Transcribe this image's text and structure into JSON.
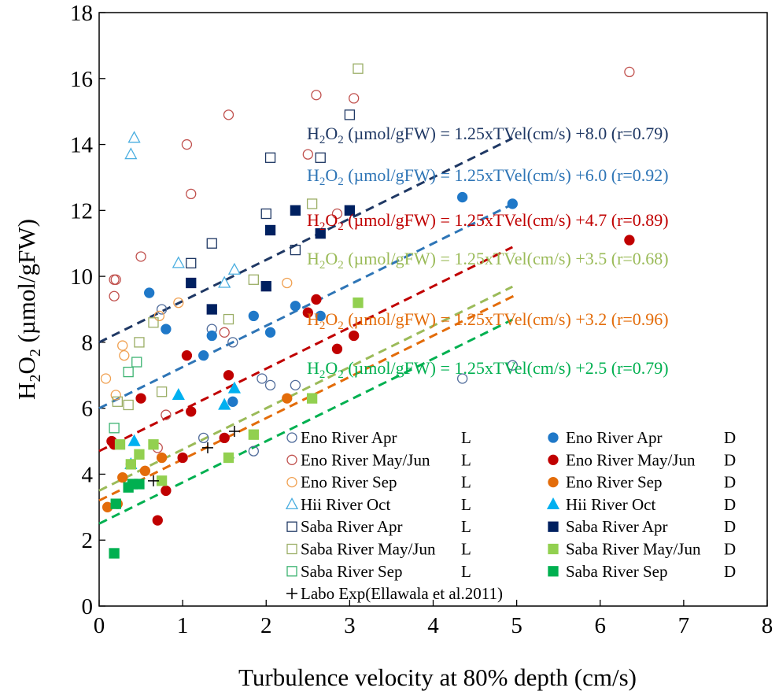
{
  "chart_data": {
    "type": "scatter",
    "xlabel": "Turbulence velocity at 80% depth  (cm/s)",
    "ylabel": {
      "main": "H",
      "sub1": "2",
      "mid": "O",
      "sub2": "2",
      "tail": "  (µmol/gFW)"
    },
    "xlim": [
      0,
      8
    ],
    "ylim": [
      0,
      18
    ],
    "xticks": [
      0,
      1,
      2,
      3,
      4,
      5,
      6,
      7,
      8
    ],
    "yticks": [
      0,
      2,
      4,
      6,
      8,
      10,
      12,
      14,
      16,
      18
    ],
    "grid": false,
    "series": [
      {
        "name": "Eno River Apr",
        "cond": "L",
        "color": "#4f6b9a",
        "marker": "circle",
        "filled": false,
        "points": [
          [
            0.75,
            9.0
          ],
          [
            1.35,
            8.4
          ],
          [
            1.6,
            8.0
          ],
          [
            1.95,
            6.9
          ],
          [
            2.05,
            6.7
          ],
          [
            2.35,
            6.7
          ],
          [
            1.85,
            4.7
          ],
          [
            1.25,
            5.1
          ],
          [
            4.35,
            6.9
          ],
          [
            4.95,
            7.3
          ]
        ]
      },
      {
        "name": "Eno River Apr",
        "cond": "D",
        "color": "#1f78c8",
        "marker": "circle",
        "filled": true,
        "points": [
          [
            0.6,
            9.5
          ],
          [
            0.8,
            8.4
          ],
          [
            1.25,
            7.6
          ],
          [
            1.35,
            8.2
          ],
          [
            1.6,
            6.2
          ],
          [
            1.85,
            8.8
          ],
          [
            2.05,
            8.3
          ],
          [
            2.35,
            9.1
          ],
          [
            2.65,
            8.8
          ],
          [
            4.35,
            12.4
          ],
          [
            4.95,
            12.2
          ]
        ]
      },
      {
        "name": "Eno River May/Jun",
        "cond": "L",
        "color": "#c0504d",
        "marker": "circle",
        "filled": false,
        "points": [
          [
            0.18,
            9.9
          ],
          [
            0.2,
            9.9
          ],
          [
            0.18,
            9.4
          ],
          [
            0.5,
            10.6
          ],
          [
            0.7,
            4.8
          ],
          [
            0.8,
            5.8
          ],
          [
            1.05,
            14.0
          ],
          [
            1.1,
            12.5
          ],
          [
            1.5,
            8.3
          ],
          [
            1.55,
            14.9
          ],
          [
            2.5,
            13.7
          ],
          [
            2.6,
            15.5
          ],
          [
            2.85,
            11.9
          ],
          [
            3.05,
            15.4
          ],
          [
            6.35,
            16.2
          ]
        ]
      },
      {
        "name": "Eno River May/Jun",
        "cond": "D",
        "color": "#c00000",
        "marker": "circle",
        "filled": true,
        "points": [
          [
            0.15,
            5.0
          ],
          [
            0.18,
            4.9
          ],
          [
            0.5,
            6.3
          ],
          [
            0.7,
            2.6
          ],
          [
            0.8,
            3.5
          ],
          [
            1.0,
            4.5
          ],
          [
            1.05,
            7.6
          ],
          [
            1.1,
            5.9
          ],
          [
            1.5,
            5.1
          ],
          [
            1.55,
            7.0
          ],
          [
            2.5,
            8.9
          ],
          [
            2.6,
            9.3
          ],
          [
            2.85,
            7.8
          ],
          [
            3.05,
            8.2
          ],
          [
            6.35,
            11.1
          ]
        ]
      },
      {
        "name": "Eno River Sep",
        "cond": "L",
        "color": "#f0a050",
        "marker": "circle",
        "filled": false,
        "points": [
          [
            0.08,
            6.9
          ],
          [
            0.2,
            6.4
          ],
          [
            0.28,
            7.9
          ],
          [
            0.3,
            7.6
          ],
          [
            0.72,
            8.8
          ],
          [
            0.95,
            9.2
          ],
          [
            2.25,
            9.8
          ]
        ]
      },
      {
        "name": "Eno River Sep",
        "cond": "D",
        "color": "#e36c0a",
        "marker": "circle",
        "filled": true,
        "points": [
          [
            0.1,
            3.0
          ],
          [
            0.22,
            3.1
          ],
          [
            0.28,
            3.9
          ],
          [
            0.38,
            4.3
          ],
          [
            0.55,
            4.1
          ],
          [
            0.75,
            4.5
          ],
          [
            2.25,
            6.3
          ]
        ]
      },
      {
        "name": "Hii River  Oct",
        "cond": "L",
        "color": "#4aaee0",
        "marker": "triangle",
        "filled": false,
        "points": [
          [
            0.42,
            14.2
          ],
          [
            0.38,
            13.7
          ],
          [
            0.95,
            10.4
          ],
          [
            1.5,
            9.8
          ],
          [
            1.62,
            10.2
          ]
        ]
      },
      {
        "name": "Hii River  Oct",
        "cond": "D",
        "color": "#00b0f0",
        "marker": "triangle",
        "filled": true,
        "points": [
          [
            0.42,
            5.0
          ],
          [
            0.38,
            4.3
          ],
          [
            0.95,
            6.4
          ],
          [
            1.5,
            6.1
          ],
          [
            1.62,
            6.6
          ]
        ]
      },
      {
        "name": "Saba River Apr",
        "cond": "L",
        "color": "#1f3864",
        "marker": "square",
        "filled": false,
        "points": [
          [
            1.1,
            10.4
          ],
          [
            1.35,
            11.0
          ],
          [
            2.0,
            11.9
          ],
          [
            2.05,
            13.6
          ],
          [
            2.35,
            10.8
          ],
          [
            2.65,
            13.6
          ],
          [
            3.0,
            14.9
          ]
        ]
      },
      {
        "name": "Saba River Apr",
        "cond": "D",
        "color": "#002060",
        "marker": "square",
        "filled": true,
        "points": [
          [
            1.1,
            9.8
          ],
          [
            1.35,
            9.0
          ],
          [
            2.0,
            9.7
          ],
          [
            2.05,
            11.4
          ],
          [
            2.35,
            12.0
          ],
          [
            2.65,
            11.3
          ],
          [
            3.0,
            12.0
          ]
        ]
      },
      {
        "name": "Saba River May/Jun",
        "cond": "L",
        "color": "#9bae66",
        "marker": "square",
        "filled": false,
        "points": [
          [
            0.22,
            6.2
          ],
          [
            0.35,
            6.1
          ],
          [
            0.48,
            8.0
          ],
          [
            0.65,
            8.6
          ],
          [
            0.75,
            6.5
          ],
          [
            1.55,
            8.7
          ],
          [
            1.85,
            9.9
          ],
          [
            2.55,
            12.2
          ],
          [
            3.1,
            16.3
          ]
        ]
      },
      {
        "name": "Saba River May/Jun",
        "cond": "D",
        "color": "#92d050",
        "marker": "square",
        "filled": true,
        "points": [
          [
            0.25,
            4.9
          ],
          [
            0.38,
            4.3
          ],
          [
            0.48,
            4.6
          ],
          [
            0.65,
            4.9
          ],
          [
            0.75,
            3.8
          ],
          [
            1.55,
            4.5
          ],
          [
            1.85,
            5.2
          ],
          [
            2.55,
            6.3
          ],
          [
            3.1,
            9.2
          ]
        ]
      },
      {
        "name": "Saba River Sep",
        "cond": "L",
        "color": "#3cb371",
        "marker": "square",
        "filled": false,
        "points": [
          [
            0.18,
            5.4
          ],
          [
            0.35,
            7.1
          ],
          [
            0.45,
            7.4
          ]
        ]
      },
      {
        "name": "Saba River Sep",
        "cond": "D",
        "color": "#00b050",
        "marker": "square",
        "filled": true,
        "points": [
          [
            0.18,
            1.6
          ],
          [
            0.2,
            3.1
          ],
          [
            0.35,
            3.6
          ],
          [
            0.4,
            3.7
          ],
          [
            0.48,
            3.7
          ]
        ]
      },
      {
        "name": "Labo Exp(Ellawala et al.2011)",
        "cond": "",
        "color": "#000000",
        "marker": "plus",
        "filled": false,
        "points": [
          [
            0.65,
            3.8
          ],
          [
            1.3,
            4.8
          ],
          [
            1.62,
            5.3
          ]
        ]
      }
    ],
    "fit_lines": [
      {
        "slope": 1.25,
        "intercept": 8.0,
        "x_range": [
          0,
          4.95
        ],
        "color": "#1f3864",
        "label": "H2O2 (µmol/gFW) = 1.25xTVel(cm/s) +8.0 (r=0.79)"
      },
      {
        "slope": 1.25,
        "intercept": 6.0,
        "x_range": [
          0,
          4.95
        ],
        "color": "#2e75b6",
        "label": "H2O2 (µmol/gFW) = 1.25xTVel(cm/s) +6.0 (r=0.92)"
      },
      {
        "slope": 1.25,
        "intercept": 4.7,
        "x_range": [
          0,
          4.95
        ],
        "color": "#c00000",
        "label": "H2O2 (µmol/gFW) = 1.25xTVel(cm/s) +4.7 (r=0.89)"
      },
      {
        "slope": 1.25,
        "intercept": 3.5,
        "x_range": [
          0,
          4.95
        ],
        "color": "#9bbb59",
        "label": "H2O2 (µmol/gFW) = 1.25xTVel(cm/s) +3.5 (r=0.68)"
      },
      {
        "slope": 1.25,
        "intercept": 3.2,
        "x_range": [
          0,
          5.0
        ],
        "color": "#e36c0a",
        "label": "H2O2 (µmol/gFW) = 1.25xTVel(cm/s) +3.2 (r=0.96)"
      },
      {
        "slope": 1.25,
        "intercept": 2.5,
        "x_range": [
          0,
          4.95
        ],
        "color": "#00b050",
        "label": "H2O2 (µmol/gFW) = 1.25xTVel(cm/s) +2.5 (r=0.79)"
      }
    ],
    "equation_text": {
      "h": "H",
      "sub": "2",
      "o": "O",
      "eq_mid": " (µmol/gFW) = 1.25xTVel(cm/s) "
    },
    "equations": [
      {
        "intercept": "+8.0",
        "r": "(r=0.79)",
        "color": "#1f3864"
      },
      {
        "intercept": "+6.0",
        "r": "(r=0.92)",
        "color": "#2e75b6"
      },
      {
        "intercept": "+4.7",
        "r": "(r=0.89)",
        "color": "#c00000"
      },
      {
        "intercept": "+3.5",
        "r": "(r=0.68)",
        "color": "#9bbb59"
      },
      {
        "intercept": "+3.2",
        "r": "(r=0.96)",
        "color": "#e36c0a"
      },
      {
        "intercept": "+2.5",
        "r": "(r=0.79)",
        "color": "#00b050"
      }
    ],
    "legend": [
      {
        "label": "Eno River Apr",
        "cond": "L",
        "series": 0
      },
      {
        "label": "Eno River Apr",
        "cond": "D",
        "series": 1
      },
      {
        "label": "Eno River May/Jun",
        "cond": "L",
        "series": 2
      },
      {
        "label": "Eno River May/Jun",
        "cond": "D",
        "series": 3
      },
      {
        "label": "Eno River Sep",
        "cond": "L",
        "series": 4
      },
      {
        "label": "Eno River Sep",
        "cond": "D",
        "series": 5
      },
      {
        "label": "Hii River  Oct",
        "cond": "L",
        "series": 6
      },
      {
        "label": "Hii River  Oct",
        "cond": "D",
        "series": 7
      },
      {
        "label": "Saba River Apr",
        "cond": "L",
        "series": 8
      },
      {
        "label": "Saba River Apr",
        "cond": "D",
        "series": 9
      },
      {
        "label": "Saba River May/Jun",
        "cond": "L",
        "series": 10
      },
      {
        "label": "Saba River May/Jun",
        "cond": "D",
        "series": 11
      },
      {
        "label": "Saba River Sep",
        "cond": "L",
        "series": 12
      },
      {
        "label": "Saba River Sep",
        "cond": "D",
        "series": 13
      },
      {
        "label": "Labo Exp(Ellawala et al.2011)",
        "cond": "",
        "series": 14
      }
    ]
  }
}
